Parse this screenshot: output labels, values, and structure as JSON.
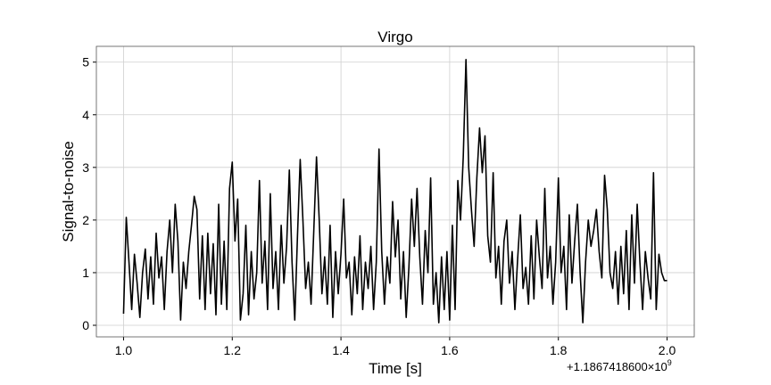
{
  "chart_data": {
    "type": "line",
    "title": "Virgo",
    "xlabel": "Time [s]",
    "ylabel": "Signal-to-noise",
    "x_offset": "+1.1867418600×10",
    "x_offset_exponent": "9",
    "xlim": [
      0.95,
      2.05
    ],
    "ylim": [
      -0.22,
      5.3
    ],
    "xticks": [
      {
        "value": 1,
        "label": "1.0"
      },
      1.2,
      1.4,
      1.6,
      1.8,
      {
        "value": 2,
        "label": "2.0"
      }
    ],
    "yticks": [
      0,
      1,
      2,
      3,
      4,
      5
    ],
    "grid": true,
    "x": [
      1.0,
      1.005,
      1.01,
      1.015,
      1.02,
      1.025,
      1.03,
      1.035,
      1.04,
      1.045,
      1.05,
      1.055,
      1.06,
      1.065,
      1.07,
      1.075,
      1.08,
      1.085,
      1.09,
      1.095,
      1.1,
      1.105,
      1.11,
      1.115,
      1.12,
      1.125,
      1.13,
      1.135,
      1.14,
      1.145,
      1.15,
      1.155,
      1.16,
      1.165,
      1.17,
      1.175,
      1.18,
      1.185,
      1.19,
      1.195,
      1.2,
      1.205,
      1.21,
      1.215,
      1.22,
      1.225,
      1.23,
      1.235,
      1.24,
      1.245,
      1.25,
      1.255,
      1.26,
      1.265,
      1.27,
      1.275,
      1.28,
      1.285,
      1.29,
      1.295,
      1.3,
      1.305,
      1.31,
      1.315,
      1.32,
      1.325,
      1.33,
      1.335,
      1.34,
      1.345,
      1.35,
      1.355,
      1.36,
      1.365,
      1.37,
      1.375,
      1.38,
      1.385,
      1.39,
      1.395,
      1.4,
      1.405,
      1.41,
      1.415,
      1.42,
      1.425,
      1.43,
      1.435,
      1.44,
      1.445,
      1.45,
      1.455,
      1.46,
      1.465,
      1.47,
      1.475,
      1.48,
      1.485,
      1.49,
      1.495,
      1.5,
      1.505,
      1.51,
      1.515,
      1.52,
      1.525,
      1.53,
      1.535,
      1.54,
      1.545,
      1.55,
      1.555,
      1.56,
      1.565,
      1.57,
      1.575,
      1.58,
      1.585,
      1.59,
      1.595,
      1.6,
      1.605,
      1.61,
      1.615,
      1.62,
      1.625,
      1.63,
      1.635,
      1.64,
      1.645,
      1.65,
      1.655,
      1.66,
      1.665,
      1.67,
      1.675,
      1.68,
      1.685,
      1.69,
      1.695,
      1.7,
      1.705,
      1.71,
      1.715,
      1.72,
      1.725,
      1.73,
      1.735,
      1.74,
      1.745,
      1.75,
      1.755,
      1.76,
      1.765,
      1.77,
      1.775,
      1.78,
      1.785,
      1.79,
      1.795,
      1.8,
      1.805,
      1.81,
      1.815,
      1.82,
      1.825,
      1.83,
      1.835,
      1.84,
      1.845,
      1.85,
      1.855,
      1.86,
      1.865,
      1.87,
      1.875,
      1.88,
      1.885,
      1.89,
      1.895,
      1.9,
      1.905,
      1.91,
      1.915,
      1.92,
      1.925,
      1.93,
      1.935,
      1.94,
      1.945,
      1.95,
      1.955,
      1.96,
      1.965,
      1.97,
      1.975,
      1.98,
      1.985,
      1.99,
      1.995,
      2.0
    ],
    "series": [
      {
        "color": "#000000",
        "values": [
          0.22,
          2.05,
          1.2,
          0.3,
          1.35,
          0.8,
          0.15,
          1.0,
          1.45,
          0.5,
          1.3,
          0.4,
          1.75,
          0.9,
          1.3,
          0.3,
          1.4,
          2.0,
          1.0,
          2.3,
          1.6,
          0.1,
          1.2,
          0.7,
          1.4,
          1.9,
          2.45,
          2.2,
          0.5,
          1.7,
          0.3,
          1.75,
          0.6,
          1.55,
          0.2,
          2.3,
          0.4,
          1.6,
          0.3,
          2.6,
          3.1,
          1.6,
          2.4,
          0.1,
          0.6,
          1.9,
          0.2,
          1.4,
          0.5,
          1.0,
          2.75,
          0.8,
          1.6,
          0.3,
          2.5,
          0.7,
          1.4,
          0.3,
          1.9,
          0.8,
          1.5,
          2.95,
          1.2,
          0.1,
          1.7,
          3.15,
          2.0,
          0.7,
          1.2,
          0.4,
          1.8,
          3.2,
          2.0,
          0.6,
          1.3,
          0.4,
          1.9,
          0.15,
          1.4,
          0.6,
          1.35,
          2.4,
          0.9,
          1.2,
          0.2,
          1.3,
          0.6,
          1.7,
          0.3,
          1.2,
          0.7,
          1.5,
          0.3,
          1.2,
          3.35,
          1.4,
          0.4,
          1.3,
          0.8,
          2.35,
          1.3,
          2.0,
          0.5,
          1.4,
          0.15,
          1.1,
          2.4,
          1.5,
          2.6,
          1.3,
          0.4,
          1.8,
          1.0,
          2.8,
          0.4,
          1.0,
          0.05,
          1.3,
          0.3,
          1.4,
          0.1,
          1.9,
          0.3,
          2.75,
          2.0,
          3.2,
          5.05,
          3.0,
          2.2,
          1.5,
          2.8,
          3.75,
          2.9,
          3.6,
          1.7,
          1.2,
          2.9,
          0.9,
          1.5,
          0.4,
          1.6,
          2.0,
          0.8,
          1.4,
          0.3,
          1.25,
          2.1,
          0.7,
          1.1,
          0.4,
          1.7,
          0.5,
          2.0,
          1.3,
          0.7,
          2.6,
          0.9,
          1.5,
          0.4,
          1.2,
          2.8,
          1.0,
          1.5,
          0.3,
          2.1,
          0.8,
          1.6,
          2.3,
          1.0,
          0.05,
          1.2,
          2.0,
          1.5,
          1.8,
          2.2,
          1.4,
          0.9,
          2.85,
          2.2,
          1.0,
          0.7,
          1.4,
          0.4,
          1.5,
          0.6,
          1.8,
          0.3,
          2.1,
          0.8,
          2.3,
          1.2,
          0.3,
          1.4,
          0.9,
          0.5,
          2.9,
          0.3,
          1.35,
          1.0,
          0.85,
          0.85
        ]
      }
    ]
  }
}
